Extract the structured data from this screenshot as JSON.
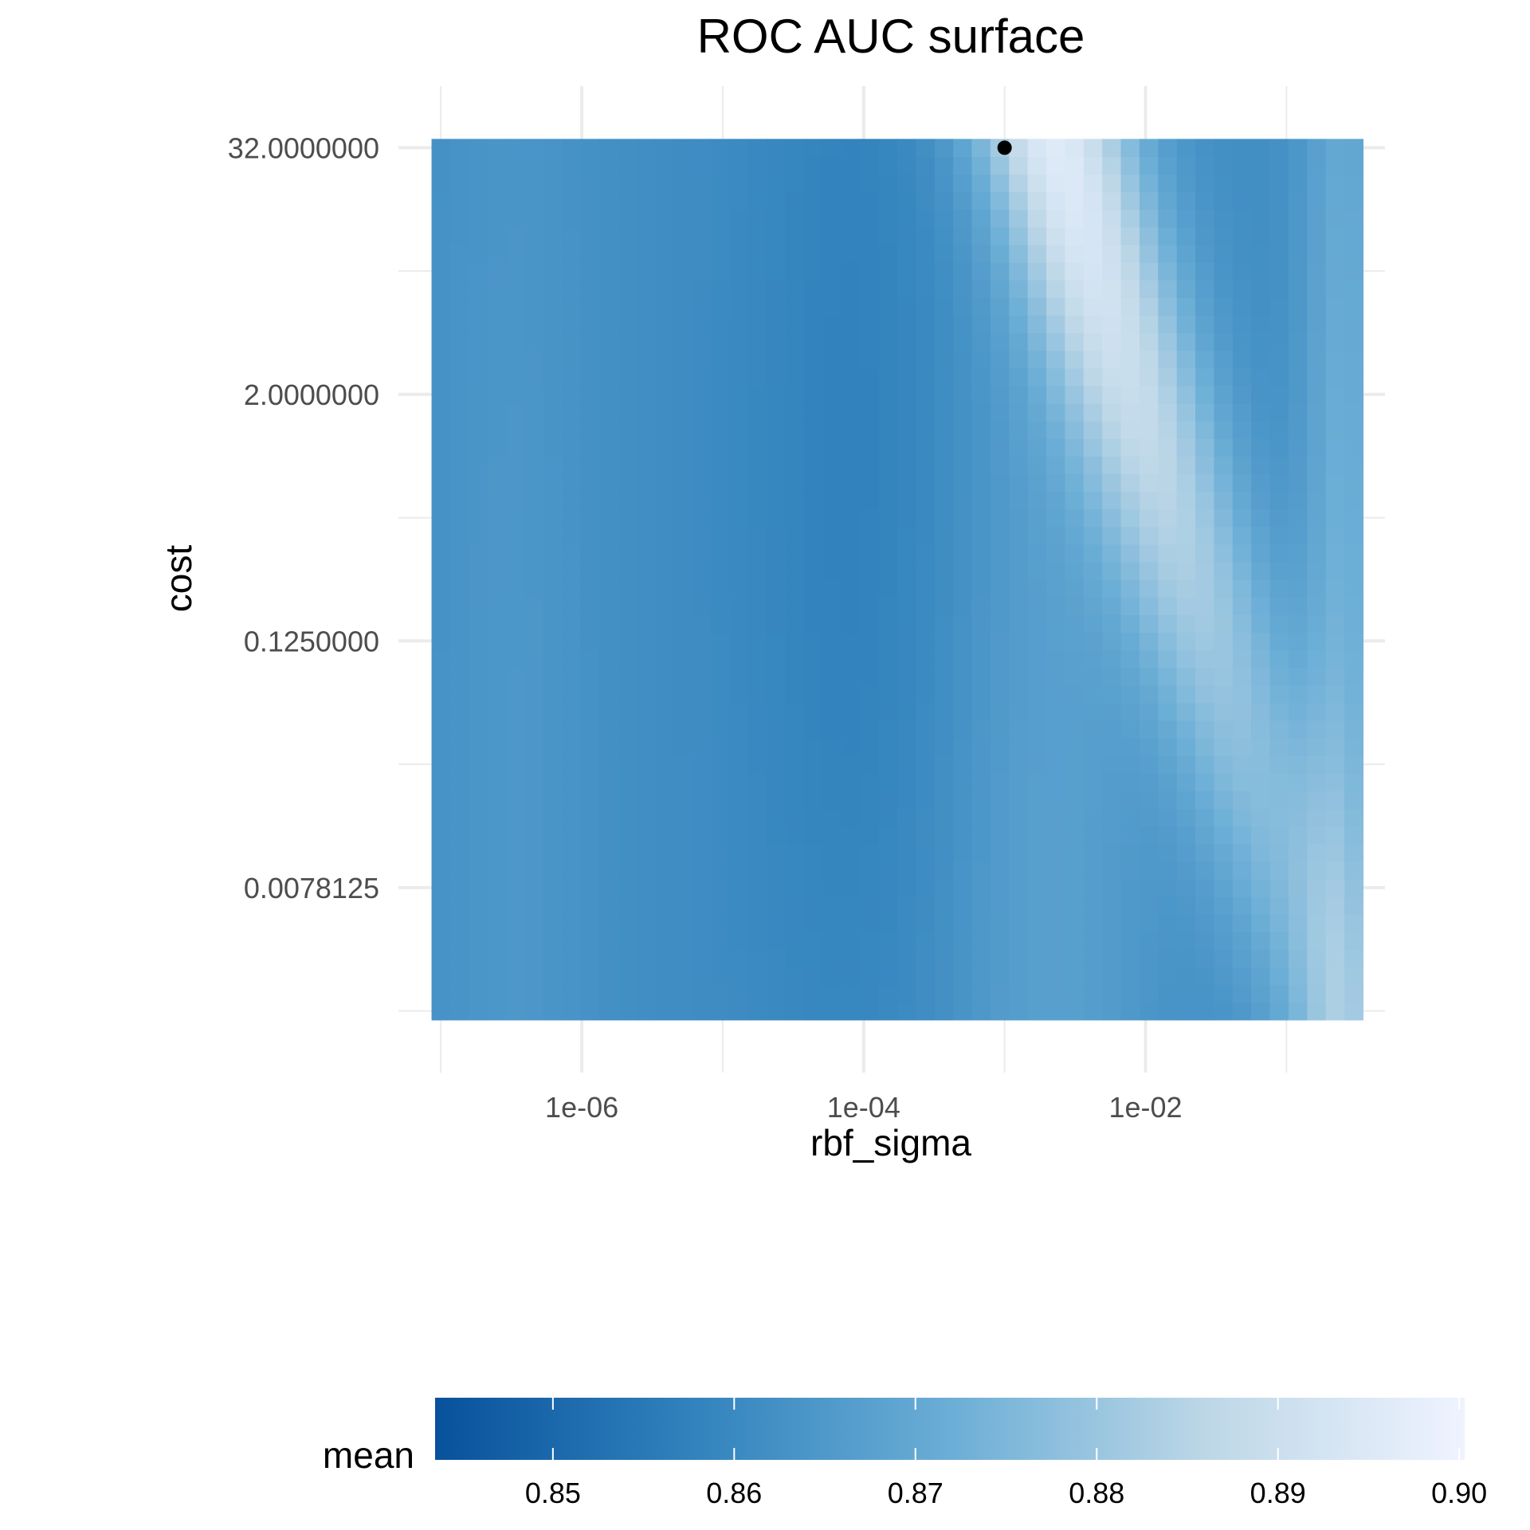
{
  "chart_data": {
    "type": "heatmap",
    "title": "ROC AUC surface",
    "xlabel": "rbf_sigma",
    "ylabel": "cost",
    "x_scale": "log10",
    "y_scale": "log2",
    "xlim": [
      5e-08,
      0.5
    ],
    "ylim": [
      0.000977,
      64
    ],
    "x_ticks": [
      {
        "value": 1e-06,
        "label": "1e-06"
      },
      {
        "value": 0.0001,
        "label": "1e-04"
      },
      {
        "value": 0.01,
        "label": "1e-02"
      }
    ],
    "y_ticks": [
      {
        "value": 32,
        "label": "32.0000000"
      },
      {
        "value": 2,
        "label": "2.0000000"
      },
      {
        "value": 0.125,
        "label": "0.1250000"
      },
      {
        "value": 0.0078125,
        "label": "0.0078125"
      }
    ],
    "grid": true,
    "x_range": [
      1e-07,
      0.3
    ],
    "y_range": [
      0.00195,
      32
    ],
    "resolution": [
      50,
      50
    ],
    "best_point": {
      "rbf_sigma": 0.001,
      "cost": 32
    },
    "colorscale": {
      "name": "mean",
      "min": 0.8435,
      "max": 0.9003,
      "stops": [
        "#08519c",
        "#3182bd",
        "#6baed6",
        "#bdd7e7",
        "#eff3ff"
      ],
      "ticks": [
        0.85,
        0.86,
        0.87,
        0.88,
        0.89,
        0.9
      ],
      "tick_labels": [
        "0.85",
        "0.86",
        "0.87",
        "0.88",
        "0.89",
        "0.90"
      ]
    },
    "legend_placement": "bottom"
  }
}
